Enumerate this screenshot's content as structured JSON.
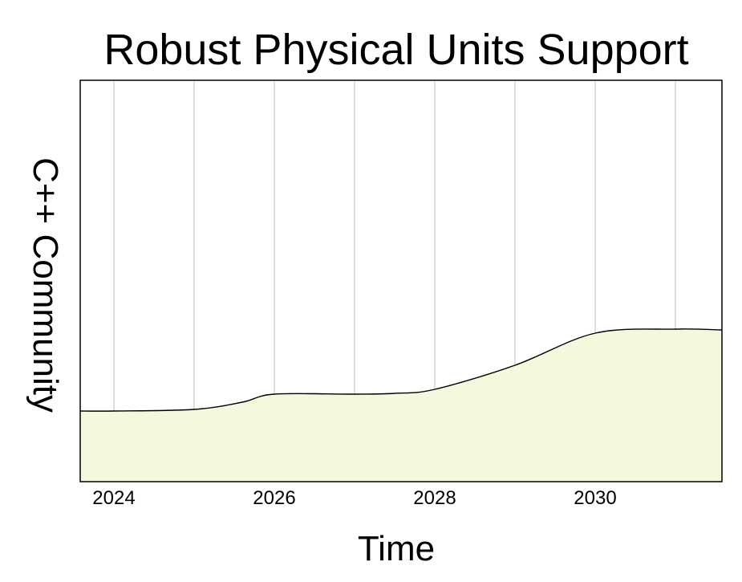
{
  "chart_data": {
    "type": "area",
    "title": "Robust Physical Units Support",
    "xlabel": "Time",
    "ylabel": "C++ Community",
    "xlim": [
      2023.58,
      2031.58
    ],
    "ylim": [
      0,
      1
    ],
    "x_ticks": [
      2024,
      2026,
      2028,
      2030
    ],
    "x_tick_labels": [
      "2024",
      "2026",
      "2028",
      "2030"
    ],
    "gridlines_x": [
      2024,
      2025,
      2026,
      2027,
      2028,
      2029,
      2030,
      2031
    ],
    "grid": "vertical",
    "legend": "none",
    "y_tick_labels_shown": false,
    "series": [
      {
        "x": [
          2023.58,
          2024.0,
          2025.0,
          2025.6,
          2026.0,
          2027.0,
          2027.5,
          2028.0,
          2029.0,
          2030.0,
          2031.0,
          2031.58
        ],
        "y": [
          0.176,
          0.176,
          0.18,
          0.198,
          0.218,
          0.218,
          0.22,
          0.23,
          0.29,
          0.37,
          0.38,
          0.378
        ]
      }
    ],
    "colors": {
      "fill": "#f4f8dc",
      "line": "#000000",
      "grid": "#c8c8c8"
    }
  }
}
